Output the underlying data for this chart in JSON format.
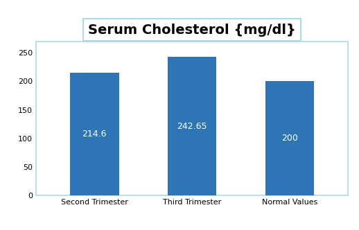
{
  "title": "Serum Cholesterol {mg/dl}",
  "categories": [
    "Second Trimester",
    "Third Trimester",
    "Normal Values"
  ],
  "values": [
    214.6,
    242.65,
    200
  ],
  "bar_color": "#2E75B6",
  "bar_labels": [
    "214.6",
    "242.65",
    "200"
  ],
  "ylim": [
    0,
    270
  ],
  "yticks": [
    0,
    50,
    100,
    150,
    200,
    250
  ],
  "label_color": "white",
  "label_fontsize": 9,
  "title_fontsize": 14,
  "xlabel_fontsize": 8,
  "ytick_fontsize": 8,
  "background_color": "#FFFFFF",
  "plot_bg_color": "#FFFFFF",
  "title_box_edge": "#ADD8E6",
  "spine_color": "#ADD8E6",
  "bar_width": 0.5
}
